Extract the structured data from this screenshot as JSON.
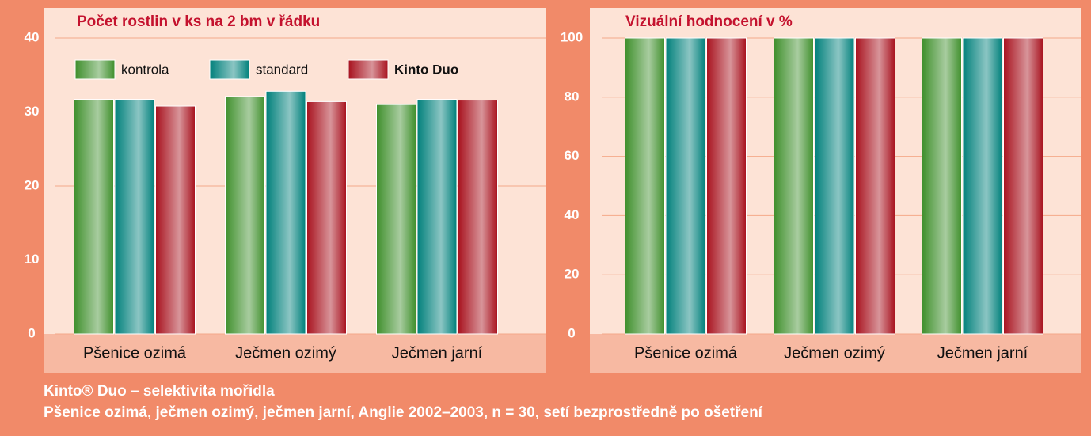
{
  "chart_data": [
    {
      "type": "bar",
      "title": "Počet rostlin v ks na 2 bm v řádku",
      "categories": [
        "Pšenice ozimá",
        "Ječmen ozimý",
        "Ječmen jarní"
      ],
      "series": [
        {
          "name": "kontrola",
          "color": "#3f8f2c",
          "values": [
            31.7,
            32.1,
            31.0
          ]
        },
        {
          "name": "standard",
          "color": "#00807b",
          "values": [
            31.7,
            32.8,
            31.7
          ]
        },
        {
          "name": "Kinto Duo",
          "color": "#a8121e",
          "values": [
            30.8,
            31.4,
            31.6
          ]
        }
      ],
      "ylim": [
        0,
        40
      ],
      "yticks": [
        0,
        10,
        20,
        30,
        40
      ],
      "grid": true,
      "legend": "top-left"
    },
    {
      "type": "bar",
      "title": "Vizuální hodnocení v %",
      "categories": [
        "Pšenice ozimá",
        "Ječmen ozimý",
        "Ječmen jarní"
      ],
      "series": [
        {
          "color": "#3f8f2c",
          "values": [
            100,
            100,
            100
          ]
        },
        {
          "color": "#00807b",
          "values": [
            100,
            100,
            100
          ]
        },
        {
          "color": "#a8121e",
          "values": [
            100,
            100,
            100
          ]
        }
      ],
      "ylim": [
        0,
        100
      ],
      "yticks": [
        0,
        20,
        40,
        60,
        80,
        100
      ],
      "grid": true
    }
  ],
  "caption": [
    "Kinto® Duo – selektivita mořidla",
    "Pšenice ozimá, ječmen ozimý, ječmen jarní, Anglie 2002–2003, n = 30, setí bezprostředně po ošetření"
  ]
}
